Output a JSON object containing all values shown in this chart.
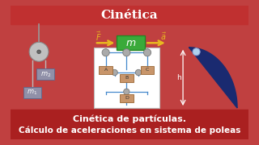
{
  "bg_color": "#c04040",
  "title": "Cinética",
  "title_color": "white",
  "title_fontsize": 11,
  "subtitle1": "Cinética de partículas.",
  "subtitle2": "Cálculo de aceleraciones en sistema de poleas",
  "subtitle_color": "white",
  "subtitle_fontsize": 8.0,
  "top_bar_color": "#c03030",
  "bottom_bar_color": "#aa2020",
  "pulley_color_outer": "#c0c0c0",
  "pulley_color_inner": "#888888",
  "mass_box_color": "#3aaa3a",
  "mass_box_edge": "#228822",
  "m1_color": "#9090a8",
  "m2_color": "#9090a8",
  "arrow_color": "#e8b820",
  "diagram_bg": "white",
  "diagram_box_color": "#c8956a",
  "diagram_cable_color": "#4488cc",
  "diagram_pulley_color": "#aaaaaa",
  "ramp_color": "#1a2a70",
  "ramp_ball_color": "#b0d0ee"
}
